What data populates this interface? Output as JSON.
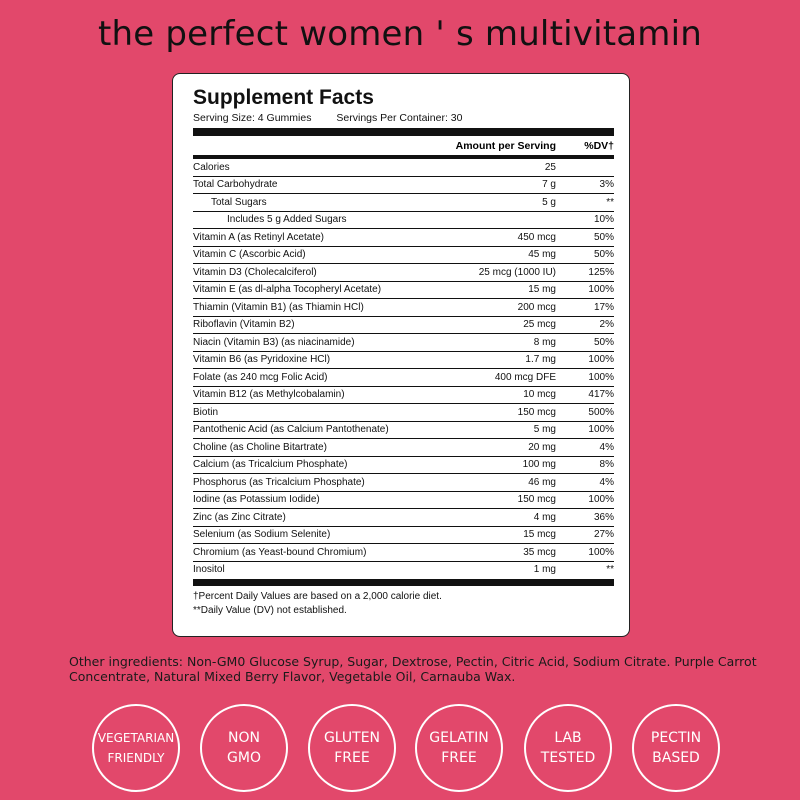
{
  "headline": "the perfect women ' s multivitamin",
  "facts": {
    "title": "Supplement Facts",
    "serving_size": "Serving Size: 4 Gummies",
    "servings_per_container": "Servings Per Container: 30",
    "col_amount": "Amount per Serving",
    "col_dv": "%DV†",
    "rows": [
      {
        "name": "Calories",
        "amount": "25",
        "dv": ""
      },
      {
        "name": "Total Carbohydrate",
        "amount": "7 g",
        "dv": "3%"
      },
      {
        "name": "Total Sugars",
        "amount": "5 g",
        "dv": "**"
      },
      {
        "name": "Includes 5 g Added Sugars",
        "amount": "",
        "dv": "10%"
      },
      {
        "name": "Vitamin A (as Retinyl Acetate)",
        "amount": "450 mcg",
        "dv": "50%"
      },
      {
        "name": "Vitamin C (Ascorbic Acid)",
        "amount": "45 mg",
        "dv": "50%"
      },
      {
        "name": "Vitamin D3 (Cholecalciferol)",
        "amount": "25 mcg (1000 IU)",
        "dv": "125%"
      },
      {
        "name": "Vitamin E (as dl-alpha Tocopheryl Acetate)",
        "amount": "15 mg",
        "dv": "100%"
      },
      {
        "name": "Thiamin (Vitamin B1) (as Thiamin HCl)",
        "amount": "200 mcg",
        "dv": "17%"
      },
      {
        "name": "Riboflavin (Vitamin B2)",
        "amount": "25 mcg",
        "dv": "2%"
      },
      {
        "name": "Niacin (Vitamin B3) (as niacinamide)",
        "amount": "8 mg",
        "dv": "50%"
      },
      {
        "name": "Vitamin B6 (as Pyridoxine HCl)",
        "amount": "1.7 mg",
        "dv": "100%"
      },
      {
        "name": "Folate (as 240 mcg Folic Acid)",
        "amount": "400 mcg DFE",
        "dv": "100%"
      },
      {
        "name": "Vitamin B12 (as Methylcobalamin)",
        "amount": "10 mcg",
        "dv": "417%"
      },
      {
        "name": "Biotin",
        "amount": "150 mcg",
        "dv": "500%"
      },
      {
        "name": "Pantothenic Acid (as Calcium Pantothenate)",
        "amount": "5 mg",
        "dv": "100%"
      },
      {
        "name": "Choline (as Choline Bitartrate)",
        "amount": "20 mg",
        "dv": "4%"
      },
      {
        "name": "Calcium (as Tricalcium Phosphate)",
        "amount": "100 mg",
        "dv": "8%"
      },
      {
        "name": "Phosphorus (as Tricalcium Phosphate)",
        "amount": "46 mg",
        "dv": "4%"
      },
      {
        "name": "Iodine (as Potassium Iodide)",
        "amount": "150 mcg",
        "dv": "100%"
      },
      {
        "name": "Zinc (as Zinc Citrate)",
        "amount": "4 mg",
        "dv": "36%"
      },
      {
        "name": "Selenium (as Sodium Selenite)",
        "amount": "15 mcg",
        "dv": "27%"
      },
      {
        "name": "Chromium (as Yeast-bound Chromium)",
        "amount": "35 mcg",
        "dv": "100%"
      },
      {
        "name": "Inositol",
        "amount": "1 mg",
        "dv": "**"
      }
    ],
    "footnote_1": "†Percent Daily Values are based on a 2,000 calorie diet.",
    "footnote_2": "**Daily Value (DV) not established."
  },
  "ingredients": "Other ingredients: Non-GM0 Glucose Syrup, Sugar, Dextrose, Pectin, Citric Acid, Sodium Citrate. Purple Carrot Concentrate, Natural Mixed Berry Flavor, Vegetable Oil, Carnauba Wax.",
  "badges": [
    {
      "line1": "VEGETARIAN",
      "line2": "FRIENDLY"
    },
    {
      "line1": "NON",
      "line2": "GMO"
    },
    {
      "line1": "GLUTEN",
      "line2": "FREE"
    },
    {
      "line1": "GELATIN",
      "line2": "FREE"
    },
    {
      "line1": "LAB",
      "line2": "TESTED"
    },
    {
      "line1": "PECTIN",
      "line2": "BASED"
    }
  ],
  "colors": {
    "background": "#e2486b",
    "panel": "#ffffff",
    "text": "#111111"
  }
}
